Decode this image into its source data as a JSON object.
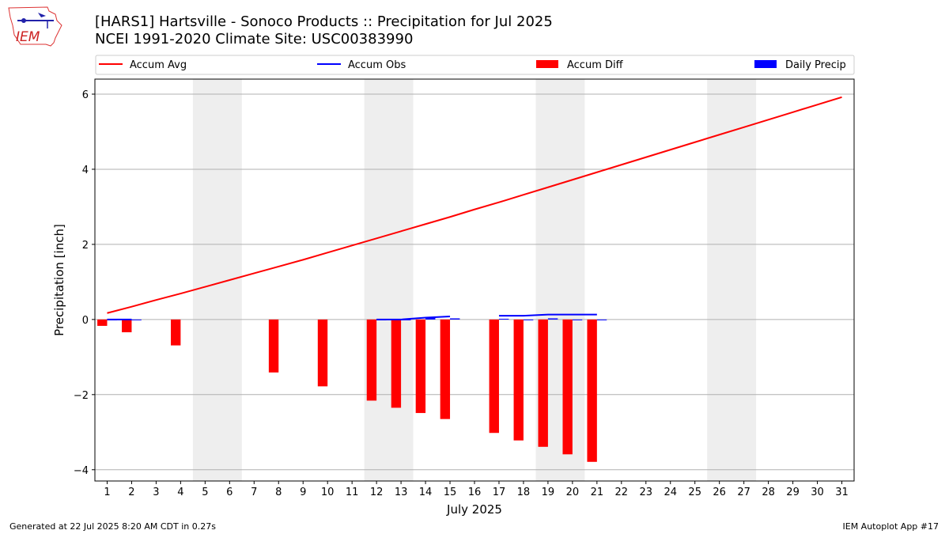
{
  "header": {
    "title": "[HARS1] Hartsville - Sonoco Products :: Precipitation for Jul 2025",
    "subtitle": "NCEI 1991-2020 Climate Site: USC00383990"
  },
  "logo": {
    "text": "IEM",
    "icon": "iem-logo-icon"
  },
  "footer": {
    "left": "Generated at 22 Jul 2025 8:20 AM CDT in 0.27s",
    "right": "IEM Autoplot App #17"
  },
  "chart_data": {
    "type": "bar",
    "xlabel": "July 2025",
    "ylabel": "Precipitation [inch]",
    "xlim": [
      0.5,
      31.5
    ],
    "ylim": [
      -4.3,
      6.4
    ],
    "yticks": [
      -4,
      -2,
      0,
      2,
      4,
      6
    ],
    "ytick_labels": [
      "−4",
      "−2",
      "0",
      "2",
      "4",
      "6"
    ],
    "x": [
      1,
      2,
      3,
      4,
      5,
      6,
      7,
      8,
      9,
      10,
      11,
      12,
      13,
      14,
      15,
      16,
      17,
      18,
      19,
      20,
      21,
      22,
      23,
      24,
      25,
      26,
      27,
      28,
      29,
      30,
      31
    ],
    "grid": "y",
    "legend_position": "top",
    "weekend_shading": [
      [
        4.5,
        6.5
      ],
      [
        11.5,
        13.5
      ],
      [
        18.5,
        20.5
      ],
      [
        25.5,
        27.5
      ]
    ],
    "series": [
      {
        "name": "Accum Avg",
        "kind": "line",
        "color": "#ff0000",
        "values": [
          0.17,
          0.34,
          0.52,
          0.69,
          0.87,
          1.05,
          1.23,
          1.41,
          1.59,
          1.78,
          1.97,
          2.16,
          2.35,
          2.54,
          2.73,
          2.93,
          3.12,
          3.32,
          3.52,
          3.72,
          3.92,
          4.12,
          4.32,
          4.52,
          4.72,
          4.92,
          5.12,
          5.32,
          5.52,
          5.72,
          5.92
        ]
      },
      {
        "name": "Accum Obs",
        "kind": "line",
        "color": "#0000ff",
        "values": [
          0.0,
          0.0,
          null,
          null,
          null,
          null,
          null,
          null,
          null,
          null,
          null,
          0.0,
          0.0,
          0.05,
          0.08,
          null,
          0.1,
          0.1,
          0.13,
          0.13,
          0.13,
          null,
          null,
          null,
          null,
          null,
          null,
          null,
          null,
          null,
          null
        ]
      },
      {
        "name": "Accum Diff",
        "kind": "bar",
        "color": "#ff0000",
        "values": [
          -0.17,
          -0.34,
          null,
          -0.69,
          null,
          null,
          null,
          -1.41,
          null,
          -1.78,
          null,
          -2.16,
          -2.35,
          -2.49,
          -2.65,
          null,
          -3.02,
          -3.22,
          -3.39,
          -3.59,
          -3.79,
          null,
          null,
          null,
          null,
          null,
          null,
          null,
          null,
          null,
          null
        ]
      },
      {
        "name": "Daily Precip",
        "kind": "bar",
        "color": "#0000ff",
        "values": [
          0.0,
          0.0,
          null,
          null,
          null,
          null,
          null,
          null,
          null,
          null,
          null,
          0.0,
          0.0,
          0.05,
          0.03,
          null,
          0.02,
          0.0,
          0.03,
          0.0,
          0.0,
          null,
          null,
          null,
          null,
          null,
          null,
          null,
          null,
          null,
          null
        ]
      }
    ]
  }
}
